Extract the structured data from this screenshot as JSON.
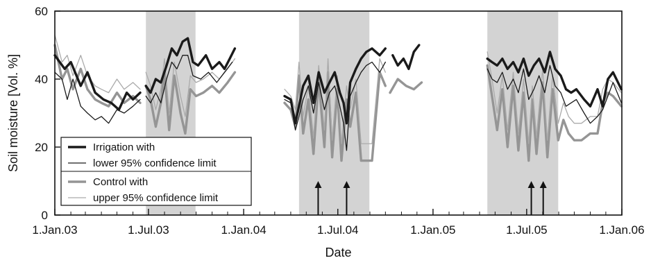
{
  "chart_data": {
    "type": "line",
    "title": "",
    "xlabel": "Date",
    "ylabel": "Soil moisture [Vol. %]",
    "ylim": [
      0,
      60
    ],
    "xlim": [
      "2003-01-01",
      "2006-01-01"
    ],
    "y_ticks": [
      0,
      20,
      40,
      60
    ],
    "x_ticks": [
      {
        "date": "2003-01-01",
        "label": "1.Jan.03"
      },
      {
        "date": "2003-07-01",
        "label": "1.Jul.03"
      },
      {
        "date": "2004-01-01",
        "label": "1.Jan.04"
      },
      {
        "date": "2004-07-01",
        "label": "1.Jul.04"
      },
      {
        "date": "2005-01-01",
        "label": "1.Jan.05"
      },
      {
        "date": "2005-07-01",
        "label": "1.Jul.05"
      },
      {
        "date": "2006-01-01",
        "label": "1.Jan.06"
      }
    ],
    "minor_x_ticks": "monthly",
    "legend_position": "bottom-left",
    "shaded_periods": [
      {
        "start": "2003-06-26",
        "end": "2003-09-30",
        "color": "#d3d3d3"
      },
      {
        "start": "2004-04-17",
        "end": "2004-08-31",
        "color": "#d3d3d3"
      },
      {
        "start": "2005-04-16",
        "end": "2005-08-31",
        "color": "#d3d3d3"
      }
    ],
    "arrows": [
      {
        "date": "2004-05-24",
        "from_y": 0,
        "to_y": 10
      },
      {
        "date": "2004-07-18",
        "from_y": 0,
        "to_y": 10
      },
      {
        "date": "2005-07-10",
        "from_y": 0,
        "to_y": 10
      },
      {
        "date": "2005-08-02",
        "from_y": 0,
        "to_y": 10
      }
    ],
    "series": [
      {
        "name": "Irrigation with",
        "color": "#1a1a1a",
        "width": 3.4,
        "style": "solid",
        "x": [
          "2003-01-01",
          "2003-01-20",
          "2003-02-01",
          "2003-02-20",
          "2003-03-05",
          "2003-03-20",
          "2003-04-05",
          "2003-04-20",
          "2003-05-05",
          "2003-05-20",
          "2003-06-01",
          "2003-06-15",
          null,
          "2003-06-26",
          "2003-07-05",
          "2003-07-15",
          "2003-07-25",
          "2003-08-05",
          "2003-08-15",
          "2003-08-25",
          "2003-09-05",
          "2003-09-15",
          "2003-09-25",
          "2003-10-05",
          "2003-10-20",
          "2003-11-01",
          "2003-11-15",
          "2003-11-25",
          "2003-12-05",
          "2003-12-15",
          null,
          "2004-03-20",
          "2004-04-01",
          "2004-04-10",
          "2004-04-17",
          "2004-04-25",
          "2004-05-05",
          "2004-05-15",
          "2004-05-25",
          "2004-06-05",
          "2004-06-15",
          "2004-06-25",
          "2004-07-05",
          "2004-07-12",
          "2004-07-18",
          "2004-07-25",
          "2004-08-05",
          "2004-08-15",
          "2004-08-25",
          "2004-09-05",
          "2004-09-20",
          "2004-10-01",
          null,
          "2004-10-15",
          "2004-10-25",
          "2004-11-05",
          "2004-11-15",
          "2004-11-25",
          "2004-12-05",
          null,
          "2005-04-16",
          "2005-04-25",
          "2005-05-05",
          "2005-05-15",
          "2005-05-25",
          "2005-06-05",
          "2005-06-15",
          "2005-06-25",
          "2005-07-05",
          "2005-07-15",
          "2005-07-25",
          "2005-08-05",
          "2005-08-15",
          "2005-08-25",
          "2005-09-05",
          "2005-09-15",
          "2005-09-25",
          "2005-10-05",
          "2005-10-20",
          "2005-11-01",
          "2005-11-15",
          "2005-11-25",
          "2005-12-05",
          "2005-12-15",
          "2005-12-31"
        ],
        "y": [
          47,
          43,
          45,
          38,
          42,
          36,
          34,
          33,
          31,
          36,
          34,
          36,
          null,
          38,
          36,
          40,
          39,
          44,
          49,
          47,
          51,
          52,
          45,
          44,
          47,
          43,
          45,
          43,
          46,
          49,
          null,
          35,
          34,
          27,
          32,
          38,
          41,
          33,
          42,
          36,
          39,
          42,
          36,
          33,
          27,
          39,
          43,
          46,
          48,
          49,
          47,
          49,
          null,
          47,
          44,
          46,
          43,
          48,
          50,
          null,
          46,
          45,
          44,
          46,
          43,
          45,
          42,
          46,
          41,
          44,
          46,
          42,
          48,
          43,
          41,
          37,
          36,
          37,
          34,
          32,
          37,
          32,
          40,
          42,
          37
        ]
      },
      {
        "name": "lower 95% confidence limit",
        "color": "#1a1a1a",
        "width": 1.3,
        "style": "solid",
        "x": [
          "2003-01-01",
          "2003-01-15",
          "2003-01-25",
          "2003-02-05",
          "2003-02-20",
          "2003-03-05",
          "2003-03-20",
          "2003-04-01",
          "2003-04-15",
          "2003-05-01",
          "2003-05-15",
          "2003-06-01",
          "2003-06-15",
          null,
          "2003-06-26",
          "2003-07-05",
          "2003-07-15",
          "2003-07-25",
          "2003-08-05",
          "2003-08-15",
          "2003-08-25",
          "2003-09-05",
          "2003-09-15",
          "2003-09-25",
          "2003-10-10",
          "2003-10-25",
          "2003-11-10",
          "2003-11-25",
          "2003-12-10",
          null,
          "2004-03-20",
          "2004-04-01",
          "2004-04-10",
          "2004-04-17",
          "2004-04-25",
          "2004-05-05",
          "2004-05-15",
          "2004-05-25",
          "2004-06-05",
          "2004-06-15",
          "2004-06-25",
          "2004-07-05",
          "2004-07-12",
          "2004-07-18",
          "2004-07-25",
          "2004-08-05",
          "2004-08-15",
          "2004-08-25",
          "2004-09-05",
          "2004-09-20",
          "2004-10-01",
          null,
          "2005-04-16",
          "2005-04-25",
          "2005-05-05",
          "2005-05-15",
          "2005-05-25",
          "2005-06-05",
          "2005-06-15",
          "2005-06-25",
          "2005-07-05",
          "2005-07-15",
          "2005-07-25",
          "2005-08-05",
          "2005-08-15",
          "2005-08-25",
          "2005-09-05",
          "2005-09-15",
          "2005-09-25",
          "2005-10-05",
          "2005-10-20",
          "2005-11-01",
          "2005-11-15",
          "2005-11-25",
          "2005-12-05",
          "2005-12-15",
          "2005-12-31"
        ],
        "y": [
          42,
          40,
          34,
          40,
          32,
          30,
          28,
          29,
          27,
          31,
          30,
          32,
          34,
          null,
          35,
          33,
          36,
          33,
          40,
          45,
          43,
          47,
          47,
          41,
          40,
          42,
          39,
          42,
          45,
          null,
          34,
          33,
          25,
          29,
          34,
          38,
          30,
          39,
          31,
          36,
          38,
          32,
          27,
          19,
          35,
          39,
          42,
          44,
          45,
          42,
          45,
          null,
          43,
          40,
          39,
          42,
          37,
          40,
          36,
          43,
          34,
          37,
          41,
          36,
          44,
          38,
          36,
          32,
          33,
          34,
          30,
          27,
          29,
          31,
          35,
          39,
          33
        ]
      },
      {
        "name": "Control with",
        "color": "#959595",
        "width": 3.4,
        "style": "solid",
        "x": [
          "2003-01-01",
          "2003-01-15",
          "2003-01-25",
          "2003-02-05",
          "2003-02-20",
          "2003-03-05",
          "2003-03-20",
          "2003-04-01",
          "2003-04-15",
          "2003-05-01",
          "2003-05-15",
          "2003-06-01",
          "2003-06-15",
          null,
          "2003-06-26",
          "2003-07-05",
          "2003-07-15",
          "2003-07-25",
          "2003-08-01",
          "2003-08-10",
          "2003-08-20",
          "2003-09-01",
          "2003-09-10",
          "2003-09-20",
          "2003-10-01",
          "2003-10-15",
          "2003-11-01",
          "2003-11-15",
          "2003-12-01",
          "2003-12-15",
          null,
          "2004-03-20",
          "2004-04-01",
          "2004-04-10",
          "2004-04-17",
          "2004-04-25",
          "2004-05-05",
          "2004-05-15",
          "2004-05-25",
          "2004-06-05",
          "2004-06-12",
          "2004-06-20",
          "2004-06-30",
          "2004-07-08",
          "2004-07-18",
          "2004-07-25",
          "2004-08-05",
          "2004-08-15",
          "2004-08-25",
          "2004-09-05",
          "2004-09-20",
          "2004-10-01",
          null,
          "2004-10-10",
          "2004-10-25",
          "2004-11-10",
          "2004-11-25",
          "2004-12-10",
          null,
          "2005-04-16",
          "2005-04-25",
          "2005-05-05",
          "2005-05-15",
          "2005-05-25",
          "2005-06-05",
          "2005-06-15",
          "2005-06-25",
          "2005-07-05",
          "2005-07-12",
          "2005-07-20",
          "2005-08-01",
          "2005-08-10",
          "2005-08-20",
          "2005-08-31",
          "2005-09-10",
          "2005-09-20",
          "2005-10-01",
          "2005-10-15",
          "2005-11-01",
          "2005-11-15",
          "2005-11-25",
          "2005-12-05",
          "2005-12-15",
          "2005-12-31"
        ],
        "y": [
          50,
          40,
          43,
          37,
          43,
          37,
          34,
          33,
          32,
          36,
          33,
          35,
          33,
          null,
          38,
          34,
          26,
          33,
          42,
          25,
          41,
          30,
          24,
          37,
          35,
          36,
          38,
          36,
          39,
          42,
          null,
          33,
          31,
          26,
          41,
          24,
          34,
          18,
          40,
          20,
          42,
          17,
          37,
          16,
          34,
          26,
          36,
          16,
          16,
          16,
          42,
          38,
          null,
          36,
          40,
          38,
          37,
          39,
          null,
          44,
          35,
          25,
          37,
          20,
          38,
          19,
          36,
          16,
          34,
          18,
          39,
          17,
          37,
          22,
          28,
          24,
          22,
          22,
          24,
          24,
          33,
          36,
          35,
          32
        ]
      },
      {
        "name": "upper 95% confidence limit",
        "color": "#aaaaaa",
        "width": 1.3,
        "style": "solid",
        "x": [
          "2003-01-01",
          "2003-01-15",
          "2003-01-25",
          "2003-02-05",
          "2003-02-20",
          "2003-03-05",
          "2003-03-20",
          "2003-04-01",
          "2003-04-15",
          "2003-05-01",
          "2003-05-15",
          "2003-06-01",
          "2003-06-15",
          null,
          "2003-06-26",
          "2003-07-05",
          "2003-07-15",
          "2003-07-25",
          "2003-08-01",
          "2003-08-10",
          "2003-08-20",
          "2003-09-01",
          "2003-09-10",
          "2003-09-20",
          "2003-10-01",
          "2003-10-15",
          "2003-11-01",
          "2003-11-15",
          "2003-12-01",
          "2003-12-15",
          null,
          "2004-03-20",
          "2004-04-01",
          "2004-04-10",
          "2004-04-17",
          "2004-04-25",
          "2004-05-05",
          "2004-05-15",
          "2004-05-25",
          "2004-06-05",
          "2004-06-12",
          "2004-06-20",
          "2004-06-30",
          "2004-07-08",
          "2004-07-18",
          "2004-07-25",
          "2004-08-05",
          "2004-08-15",
          "2004-08-25",
          "2004-09-05",
          "2004-09-20",
          "2004-10-01",
          null,
          "2005-04-16",
          "2005-04-25",
          "2005-05-05",
          "2005-05-15",
          "2005-05-25",
          "2005-06-05",
          "2005-06-15",
          "2005-06-25",
          "2005-07-05",
          "2005-07-12",
          "2005-07-20",
          "2005-08-01",
          "2005-08-10",
          "2005-08-20",
          "2005-08-31",
          "2005-09-10",
          "2005-09-20",
          "2005-10-01",
          "2005-10-15",
          "2005-11-01",
          "2005-11-15",
          "2005-11-25",
          "2005-12-05",
          "2005-12-15",
          "2005-12-31"
        ],
        "y": [
          53,
          45,
          47,
          41,
          47,
          41,
          38,
          37,
          36,
          40,
          37,
          39,
          37,
          null,
          42,
          38,
          31,
          37,
          46,
          30,
          45,
          35,
          29,
          41,
          39,
          40,
          42,
          40,
          43,
          46,
          null,
          37,
          35,
          31,
          45,
          29,
          38,
          23,
          44,
          25,
          46,
          22,
          41,
          21,
          38,
          31,
          40,
          21,
          21,
          21,
          46,
          42,
          null,
          48,
          40,
          30,
          41,
          25,
          42,
          24,
          40,
          21,
          38,
          23,
          43,
          22,
          41,
          27,
          33,
          29,
          27,
          27,
          29,
          29,
          37,
          40,
          39,
          36
        ]
      }
    ]
  }
}
